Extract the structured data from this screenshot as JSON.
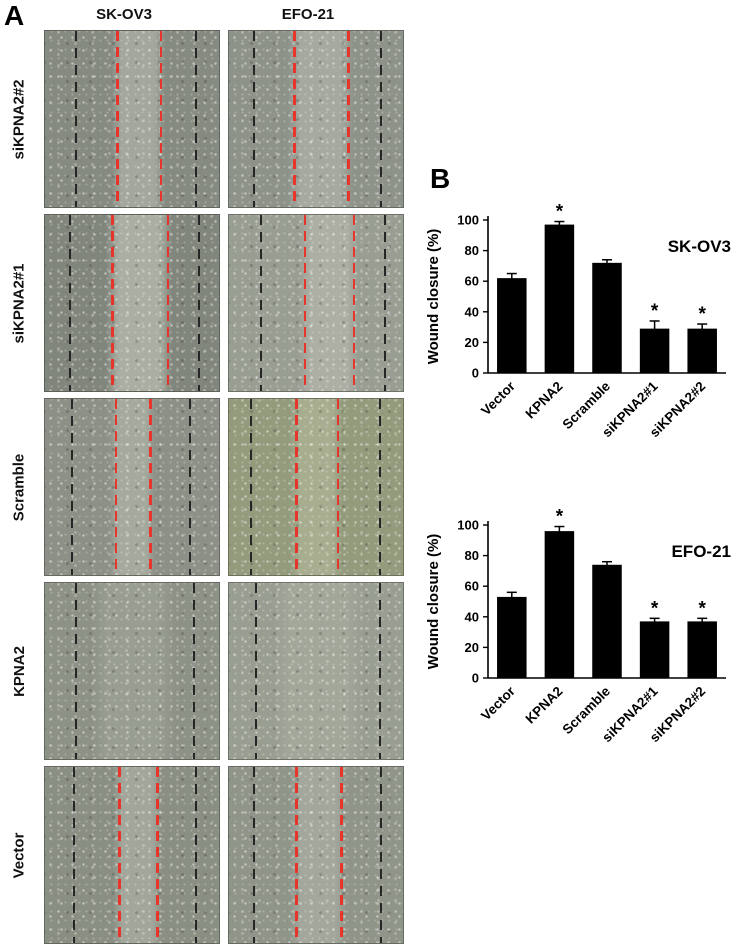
{
  "figure": {
    "panel_a_label": "A",
    "panel_b_label": "B"
  },
  "colors": {
    "dash_black": "#262626",
    "dash_red": "#e8352b",
    "bar_fill": "#000000"
  },
  "panel_a": {
    "column_headers": [
      "SK-OV3",
      "EFO-21"
    ],
    "rows": [
      {
        "label": "siKPNA2#2",
        "cells": [
          {
            "bg": "#868b81",
            "band_color": "#a4a79d",
            "red": [
              0.41,
              0.66
            ],
            "black": [
              0.17,
              0.86
            ]
          },
          {
            "bg": "#8e938a",
            "band_color": "#a6a99f",
            "red": [
              0.37,
              0.68
            ],
            "black": [
              0.14,
              0.87
            ]
          }
        ]
      },
      {
        "label": "siKPNA2#1",
        "cells": [
          {
            "bg": "#81867c",
            "band_color": "#abaea3",
            "red": [
              0.38,
              0.7
            ],
            "black": [
              0.14,
              0.88
            ]
          },
          {
            "bg": "#999e93",
            "band_color": "#adafa5",
            "red": [
              0.43,
              0.71
            ],
            "black": [
              0.18,
              0.89
            ]
          }
        ]
      },
      {
        "label": "Scramble",
        "cells": [
          {
            "bg": "#8c9086",
            "band_color": "#a6a99e",
            "red": [
              0.4,
              0.6
            ],
            "black": [
              0.15,
              0.83
            ]
          },
          {
            "bg": "#949b7d",
            "band_color": "#a8ad90",
            "red": [
              0.38,
              0.62
            ],
            "black": [
              0.12,
              0.86
            ]
          }
        ]
      },
      {
        "label": "KPNA2",
        "cells": [
          {
            "bg": "#8d9287",
            "band_color": "#999e92",
            "band": [
              0.3,
              0.72
            ],
            "red": null,
            "black": [
              0.17,
              0.85
            ]
          },
          {
            "bg": "#999e92",
            "band_color": "#a3a79a",
            "band": [
              0.28,
              0.74
            ],
            "red": null,
            "black": [
              0.15,
              0.86
            ]
          }
        ]
      },
      {
        "label": "Vector",
        "cells": [
          {
            "bg": "#8a8f84",
            "band_color": "#a3a69b",
            "red": [
              0.42,
              0.64
            ],
            "black": [
              0.16,
              0.86
            ]
          },
          {
            "bg": "#90958a",
            "band_color": "#a4a79c",
            "red": [
              0.38,
              0.64
            ],
            "black": [
              0.14,
              0.87
            ]
          }
        ]
      }
    ]
  },
  "chart_data": [
    {
      "type": "bar",
      "title": "SK-OV3",
      "categories": [
        "Vector",
        "KPNA2",
        "Scramble",
        "siKPNA2#1",
        "siKPNA2#2"
      ],
      "values": [
        62,
        97,
        72,
        29,
        29
      ],
      "errors": [
        3,
        2,
        2,
        5,
        3
      ],
      "significant": [
        false,
        true,
        false,
        true,
        true
      ],
      "significance_marker": "*",
      "xlabel": "",
      "ylabel": "Wound closure (%)",
      "ylim": [
        0,
        100
      ],
      "yticks": [
        0,
        20,
        40,
        60,
        80,
        100
      ],
      "grid": false,
      "legend": "none",
      "bar_color": "#000000"
    },
    {
      "type": "bar",
      "title": "EFO-21",
      "categories": [
        "Vector",
        "KPNA2",
        "Scramble",
        "siKPNA2#1",
        "siKPNA2#2"
      ],
      "values": [
        53,
        96,
        74,
        37,
        37
      ],
      "errors": [
        3,
        3,
        2,
        2,
        2
      ],
      "significant": [
        false,
        true,
        false,
        true,
        true
      ],
      "significance_marker": "*",
      "xlabel": "",
      "ylabel": "Wound closure (%)",
      "ylim": [
        0,
        100
      ],
      "yticks": [
        0,
        20,
        40,
        60,
        80,
        100
      ],
      "grid": false,
      "legend": "none",
      "bar_color": "#000000"
    }
  ]
}
